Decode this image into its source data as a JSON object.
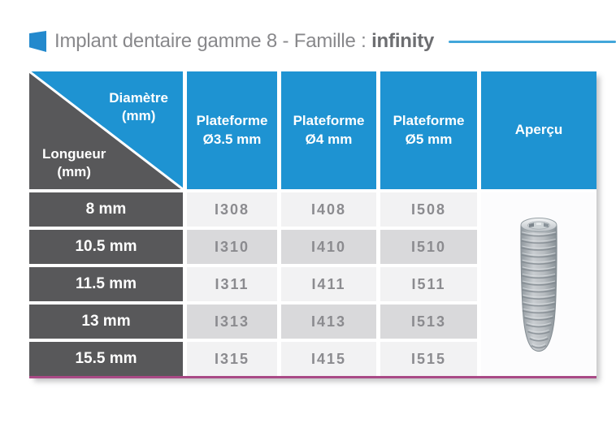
{
  "header": {
    "title_regular": "Implant dentaire gamme 8 - Famille : ",
    "title_bold": "infinity"
  },
  "table": {
    "corner": {
      "diameter_line1": "Diamètre",
      "diameter_line2": "(mm)",
      "length_line1": "Longueur",
      "length_line2": "(mm)"
    },
    "columns": [
      {
        "line1": "Plateforme",
        "line2": "Ø3.5 mm"
      },
      {
        "line1": "Plateforme",
        "line2": "Ø4 mm"
      },
      {
        "line1": "Plateforme",
        "line2": "Ø5 mm"
      }
    ],
    "apercu_label": "Aperçu",
    "rows": [
      {
        "length": "8 mm",
        "codes": [
          "I308",
          "I408",
          "I508"
        ]
      },
      {
        "length": "10.5 mm",
        "codes": [
          "I310",
          "I410",
          "I510"
        ]
      },
      {
        "length": "11.5 mm",
        "codes": [
          "I311",
          "I411",
          "I511"
        ]
      },
      {
        "length": "13 mm",
        "codes": [
          "I313",
          "I413",
          "I513"
        ]
      },
      {
        "length": "15.5 mm",
        "codes": [
          "I315",
          "I415",
          "I515"
        ]
      }
    ]
  },
  "icons": {
    "flag_icon": "blue-skewed-page",
    "implant_image": "tapered-threaded-dental-implant"
  },
  "colors": {
    "header_blue": "#1e93d2",
    "row_header_gray": "#58585a",
    "row_light": "#f2f2f3",
    "row_dark": "#d9d9db",
    "code_text": "#8b8b8f",
    "bottom_rule_pink": "#a94a86",
    "title_rule_blue": "#42a6da"
  }
}
